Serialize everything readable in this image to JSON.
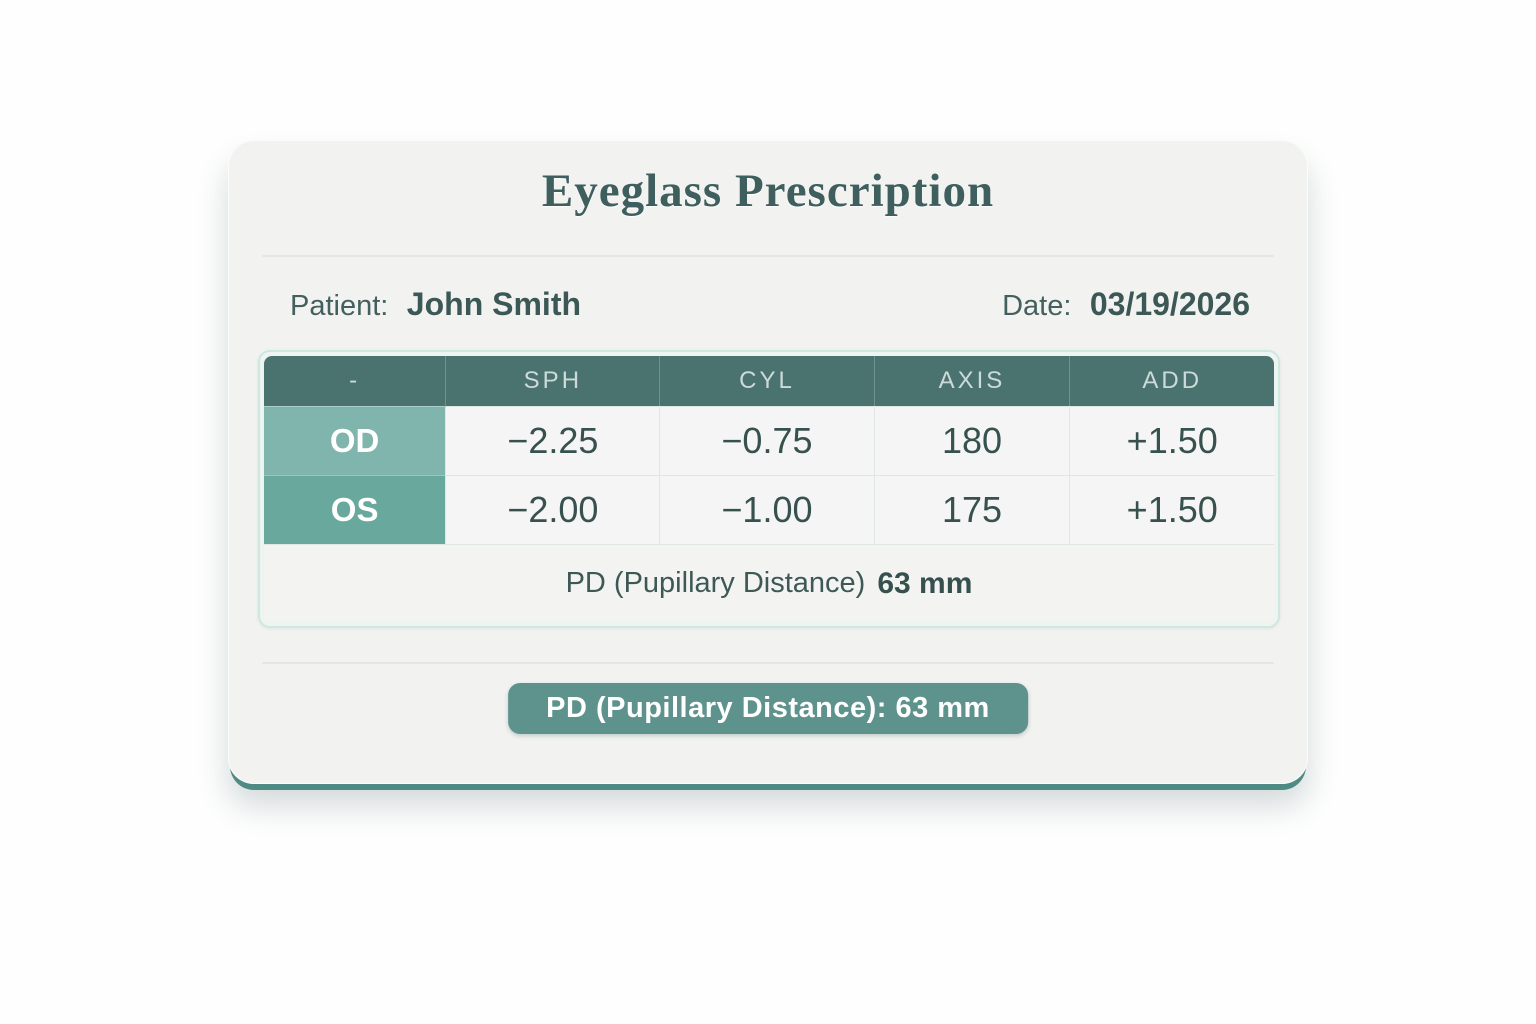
{
  "colors": {
    "header_bg": "#4a736f",
    "od_bg": "#7fb5ac",
    "os_bg": "#69a89d",
    "badge_bg": "#5e938d",
    "bottom_edge": "#4f8a84",
    "title_color": "#3f5e5e",
    "value_color": "#37514f",
    "table_border": "#cfe7e1",
    "card_bg": "#f2f3f1"
  },
  "card": {
    "title": "Eyeglass Prescription",
    "patient": {
      "label": "Patient:",
      "name": "John Smith"
    },
    "date": {
      "label": "Date:",
      "value": "03/19/2026"
    },
    "table": {
      "headers": [
        "-",
        "SPH",
        "CYL",
        "AXIS",
        "ADD"
      ],
      "rows": [
        {
          "eye": "OD",
          "sph": "−2.25",
          "cyl": "−0.75",
          "axis": "180",
          "add": "+1.50"
        },
        {
          "eye": "OS",
          "sph": "−2.00",
          "cyl": "−1.00",
          "axis": "175",
          "add": "+1.50"
        }
      ],
      "pd": {
        "label": "PD (Pupillary Distance)",
        "value": "63 mm"
      }
    },
    "badge_text": "PD (Pupillary Distance): 63 mm"
  }
}
